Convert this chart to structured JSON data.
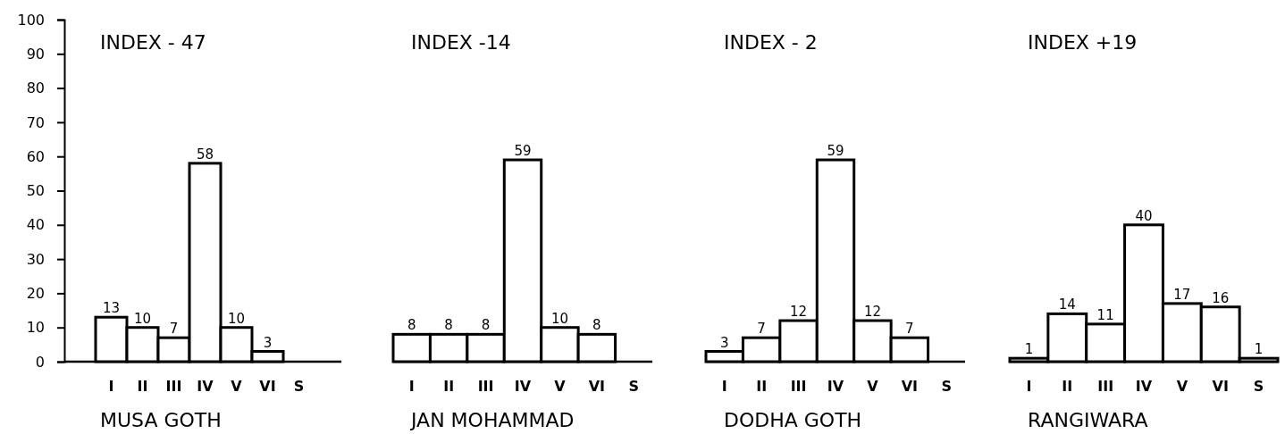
{
  "chart_data": [
    {
      "type": "bar",
      "title": "INDEX - 47",
      "xlabel": "MUSA GOTH",
      "categories": [
        "I",
        "II",
        "III",
        "IV",
        "V",
        "VI",
        "S"
      ],
      "values": [
        13,
        10,
        7,
        58,
        10,
        3,
        null
      ],
      "color": "#000000",
      "data_labels": true,
      "ylim": [
        0,
        100
      ],
      "yticks": [
        0,
        10,
        20,
        30,
        40,
        50,
        60,
        70,
        80,
        90,
        100
      ]
    },
    {
      "type": "bar",
      "title": "INDEX -14",
      "xlabel": "JAN MOHAMMAD",
      "categories": [
        "I",
        "II",
        "III",
        "IV",
        "V",
        "VI",
        "S"
      ],
      "values": [
        8,
        8,
        8,
        59,
        10,
        8,
        null
      ],
      "color": "#000000",
      "data_labels": true,
      "ylim": [
        0,
        100
      ],
      "tick_labels": "x"
    },
    {
      "type": "bar",
      "title": "INDEX - 2",
      "xlabel": "DODHA GOTH",
      "categories": [
        "I",
        "II",
        "III",
        "IV",
        "V",
        "VI",
        "S"
      ],
      "values": [
        3,
        7,
        12,
        59,
        12,
        7,
        null
      ],
      "color": "#000000",
      "data_labels": true,
      "ylim": [
        0,
        100
      ],
      "tick_labels": "x"
    },
    {
      "type": "bar",
      "title": "INDEX +19",
      "xlabel": "RANGIWARA",
      "categories": [
        "I",
        "II",
        "III",
        "IV",
        "V",
        "VI",
        "S"
      ],
      "values": [
        1,
        14,
        11,
        40,
        17,
        16,
        1
      ],
      "color": "#000000",
      "data_labels": true,
      "ylim": [
        0,
        100
      ],
      "tick_labels": "x"
    }
  ]
}
